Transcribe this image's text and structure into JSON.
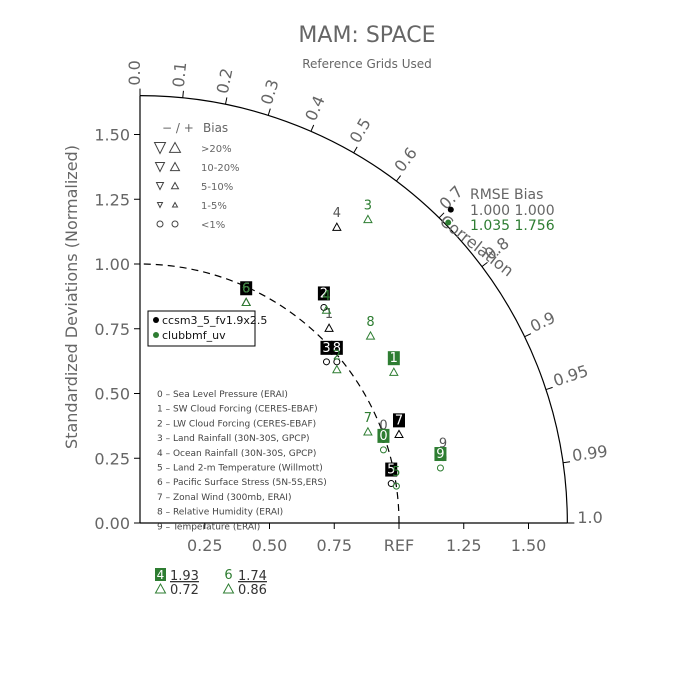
{
  "title": "MAM: SPACE",
  "subtitle": "Reference Grids Used",
  "ylabel": "Standardized Deviations (Normalized)",
  "correlation_label": "Correlation",
  "colors": {
    "model1": "#000000",
    "model2": "#2e7d32",
    "axis": "#000000",
    "text": "#666666"
  },
  "bias_legend": {
    "header_symbols": "− / +",
    "header_label": "Bias",
    "rows": [
      ">20%",
      "10-20%",
      "5-10%",
      "1-5%",
      "<1%"
    ]
  },
  "rmse_box": {
    "header": "RMSE  Bias",
    "rows": [
      "1.000 1.000",
      "1.035 1.756"
    ]
  },
  "model_legend": [
    "ccsm3_5_fv1.9x2.5",
    "clubbmf_uv"
  ],
  "variable_legend": [
    "0 – Sea Level Pressure (ERAI)",
    "1 – SW Cloud Forcing (CERES-EBAF)",
    "2 – LW Cloud Forcing (CERES-EBAF)",
    "3 – Land Rainfall (30N-30S, GPCP)",
    "4 – Ocean Rainfall (30N-30S, GPCP)",
    "5 – Land 2-m Temperature (Willmott)",
    "6 – Pacific Surface Stress (5N-5S,ERS)",
    "7 – Zonal Wind (300mb, ERAI)",
    "8 – Relative Humidity (ERAI)",
    "9 – Temperature (ERAI)"
  ],
  "off_scale": [
    {
      "label": "4",
      "model": 0,
      "value": "1.93",
      "bias": "0.72"
    },
    {
      "label": "6",
      "model": 1,
      "value": "1.74",
      "bias": "0.86"
    }
  ],
  "chart_data": {
    "type": "scatter",
    "title": "MAM: SPACE",
    "ylabel": "Standardized Deviations (Normalized)",
    "xlim": [
      0,
      1.65
    ],
    "ylim": [
      0,
      1.65
    ],
    "x_ticks": [
      "0.25",
      "0.50",
      "0.75",
      "REF",
      "1.25",
      "1.50"
    ],
    "x_tick_values": [
      0.25,
      0.5,
      0.75,
      1.0,
      1.25,
      1.5
    ],
    "y_ticks": [
      "0.00",
      "0.25",
      "0.50",
      "0.75",
      "1.00",
      "1.25",
      "1.50"
    ],
    "y_tick_values": [
      0.0,
      0.25,
      0.5,
      0.75,
      1.0,
      1.25,
      1.5
    ],
    "corr_ticks": [
      "0.0",
      "0.1",
      "0.2",
      "0.3",
      "0.4",
      "0.5",
      "0.6",
      "0.7",
      "0.8",
      "0.9",
      "0.95",
      "0.99",
      "1.0"
    ],
    "corr_tick_values": [
      0.0,
      0.1,
      0.2,
      0.3,
      0.4,
      0.5,
      0.6,
      0.7,
      0.8,
      0.9,
      0.95,
      0.99,
      1.0
    ],
    "reference_arc_radius": 1.0,
    "series": [
      {
        "name": "ccsm3_5_fv1.9x2.5",
        "points": [
          {
            "label": "0",
            "x": 0.94,
            "y": 0.33,
            "marker": "circle"
          },
          {
            "label": "1",
            "x": 0.73,
            "y": 0.76,
            "marker": "triangle-up"
          },
          {
            "label": "2",
            "x": 0.71,
            "y": 0.84,
            "marker": "circle"
          },
          {
            "label": "3",
            "x": 0.72,
            "y": 0.63,
            "marker": "circle"
          },
          {
            "label": "4",
            "x": 0.76,
            "y": 1.15,
            "marker": "triangle-up"
          },
          {
            "label": "5",
            "x": 0.97,
            "y": 0.16,
            "marker": "circle"
          },
          {
            "label": "6",
            "x": 0.41,
            "y": 0.86,
            "marker": "triangle-up"
          },
          {
            "label": "7",
            "x": 1.0,
            "y": 0.35,
            "marker": "triangle-up"
          },
          {
            "label": "8",
            "x": 0.76,
            "y": 0.63,
            "marker": "circle"
          },
          {
            "label": "9",
            "x": 1.17,
            "y": 0.26,
            "marker": "circle"
          }
        ]
      },
      {
        "name": "clubbmf_uv",
        "points": [
          {
            "label": "0",
            "x": 0.94,
            "y": 0.29,
            "marker": "circle"
          },
          {
            "label": "1",
            "x": 0.98,
            "y": 0.59,
            "marker": "triangle-up"
          },
          {
            "label": "2",
            "x": 0.76,
            "y": 0.6,
            "marker": "triangle-up"
          },
          {
            "label": "3",
            "x": 0.88,
            "y": 1.18,
            "marker": "triangle-up"
          },
          {
            "label": "4",
            "x": 0.72,
            "y": 0.83,
            "marker": "triangle-up"
          },
          {
            "label": "5",
            "x": 0.99,
            "y": 0.15,
            "marker": "circle"
          },
          {
            "label": "6",
            "x": 0.41,
            "y": 0.86,
            "marker": "triangle-up"
          },
          {
            "label": "7",
            "x": 0.88,
            "y": 0.36,
            "marker": "triangle-up"
          },
          {
            "label": "8",
            "x": 0.89,
            "y": 0.73,
            "marker": "triangle-up"
          },
          {
            "label": "9",
            "x": 1.16,
            "y": 0.22,
            "marker": "circle"
          }
        ]
      }
    ],
    "reference_point_markers": [
      {
        "model": 0,
        "x": 1.2,
        "y": 1.21
      },
      {
        "model": 1,
        "x": 1.19,
        "y": 1.16
      }
    ]
  }
}
